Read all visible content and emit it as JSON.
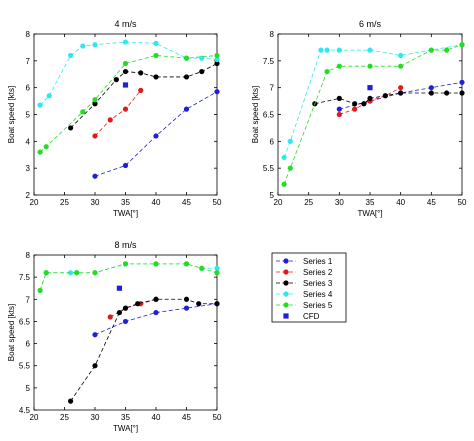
{
  "series_styles": [
    {
      "name": "Series 1",
      "color": "#1f1fdc"
    },
    {
      "name": "Series 2",
      "color": "#e01b1b"
    },
    {
      "name": "Series 3",
      "color": "#000000"
    },
    {
      "name": "Series 4",
      "color": "#2ee8f0"
    },
    {
      "name": "Series 5",
      "color": "#22dd22"
    },
    {
      "name": "CFD",
      "color": "#1f1fdc"
    }
  ],
  "chart_data": [
    {
      "type": "line",
      "title": "4 m/s",
      "xlabel": "TWA[°]",
      "ylabel": "Boat speed [kts]",
      "xlim": [
        20,
        50
      ],
      "ylim": [
        2,
        8
      ],
      "xticks": [
        20,
        25,
        30,
        35,
        40,
        45,
        50
      ],
      "yticks": [
        2,
        3,
        4,
        5,
        6,
        7,
        8
      ],
      "grid": false,
      "series": [
        {
          "name": "Series 1",
          "x": [
            30,
            35,
            40,
            45,
            50
          ],
          "y": [
            2.7,
            3.1,
            4.2,
            5.2,
            5.85
          ]
        },
        {
          "name": "Series 2",
          "x": [
            30,
            32.5,
            35,
            37.5
          ],
          "y": [
            4.2,
            4.8,
            5.2,
            5.9
          ]
        },
        {
          "name": "Series 3",
          "x": [
            26,
            30,
            33.5,
            35,
            37.5,
            40,
            45,
            47.5,
            50
          ],
          "y": [
            4.5,
            5.4,
            6.3,
            6.6,
            6.55,
            6.4,
            6.4,
            6.6,
            6.9
          ]
        },
        {
          "name": "Series 4",
          "x": [
            21,
            22.5,
            26,
            28,
            30,
            35,
            40,
            45,
            47.5,
            50
          ],
          "y": [
            5.35,
            5.7,
            7.2,
            7.55,
            7.6,
            7.7,
            7.65,
            7.1,
            7.1,
            7.05
          ]
        },
        {
          "name": "Series 5",
          "x": [
            21,
            22,
            28,
            30,
            35,
            40,
            45,
            50
          ],
          "y": [
            3.6,
            3.8,
            5.1,
            5.55,
            6.9,
            7.2,
            7.1,
            7.2
          ]
        }
      ],
      "cfd": {
        "x": [
          35
        ],
        "y": [
          6.1
        ]
      }
    },
    {
      "type": "line",
      "title": "6 m/s",
      "xlabel": "TWA[°]",
      "ylabel": "Boat speed [kts]",
      "xlim": [
        20,
        50
      ],
      "ylim": [
        5,
        8
      ],
      "xticks": [
        20,
        25,
        30,
        35,
        40,
        45,
        50
      ],
      "yticks": [
        5,
        5.5,
        6,
        6.5,
        7,
        7.5,
        8
      ],
      "grid": false,
      "series": [
        {
          "name": "Series 1",
          "x": [
            30,
            35,
            40,
            45,
            50
          ],
          "y": [
            6.6,
            6.75,
            6.9,
            7.0,
            7.1
          ]
        },
        {
          "name": "Series 2",
          "x": [
            30,
            32.5,
            35,
            37.5,
            40
          ],
          "y": [
            6.5,
            6.6,
            6.75,
            6.85,
            7.0
          ]
        },
        {
          "name": "Series 3",
          "x": [
            26,
            30,
            32.5,
            34,
            35,
            37.5,
            40,
            45,
            47.5,
            50
          ],
          "y": [
            6.7,
            6.8,
            6.7,
            6.7,
            6.8,
            6.85,
            6.9,
            6.9,
            6.9,
            6.9
          ]
        },
        {
          "name": "Series 4",
          "x": [
            21,
            22,
            27,
            28,
            30,
            35,
            40,
            45,
            50
          ],
          "y": [
            5.7,
            6.0,
            7.7,
            7.7,
            7.7,
            7.7,
            7.6,
            7.7,
            7.8
          ]
        },
        {
          "name": "Series 5",
          "x": [
            21,
            22,
            28,
            30,
            35,
            40,
            45,
            47.5,
            50
          ],
          "y": [
            5.2,
            5.5,
            7.3,
            7.4,
            7.4,
            7.4,
            7.7,
            7.7,
            7.8
          ]
        }
      ],
      "cfd": {
        "x": [
          35
        ],
        "y": [
          7.0
        ]
      }
    },
    {
      "type": "line",
      "title": "8 m/s",
      "xlabel": "TWA[°]",
      "ylabel": "Boat speed [kts]",
      "xlim": [
        20,
        50
      ],
      "ylim": [
        4.5,
        8
      ],
      "xticks": [
        20,
        25,
        30,
        35,
        40,
        45,
        50
      ],
      "yticks": [
        4.5,
        5,
        5.5,
        6,
        6.5,
        7,
        7.5,
        8
      ],
      "grid": false,
      "series": [
        {
          "name": "Series 1",
          "x": [
            30,
            35,
            40,
            45,
            50
          ],
          "y": [
            6.2,
            6.5,
            6.7,
            6.8,
            6.9
          ]
        },
        {
          "name": "Series 2",
          "x": [
            32.5,
            35,
            37.5,
            40
          ],
          "y": [
            6.6,
            6.8,
            6.9,
            7.0
          ]
        },
        {
          "name": "Series 3",
          "x": [
            26,
            30,
            34,
            35,
            37,
            40,
            45,
            47,
            50
          ],
          "y": [
            4.7,
            5.5,
            6.7,
            6.8,
            6.9,
            7.0,
            7.0,
            6.9,
            6.9
          ]
        },
        {
          "name": "Series 4",
          "x": [
            21,
            22,
            26,
            27,
            30,
            35,
            40,
            45,
            47.5,
            50
          ],
          "y": [
            7.2,
            7.6,
            7.6,
            7.6,
            7.6,
            7.8,
            7.8,
            7.8,
            7.7,
            7.7
          ]
        },
        {
          "name": "Series 5",
          "x": [
            21,
            22,
            27,
            30,
            35,
            40,
            45,
            47.5,
            50
          ],
          "y": [
            7.2,
            7.6,
            7.6,
            7.6,
            7.8,
            7.8,
            7.8,
            7.7,
            7.6
          ]
        }
      ],
      "cfd": {
        "x": [
          34
        ],
        "y": [
          7.25
        ]
      }
    }
  ]
}
